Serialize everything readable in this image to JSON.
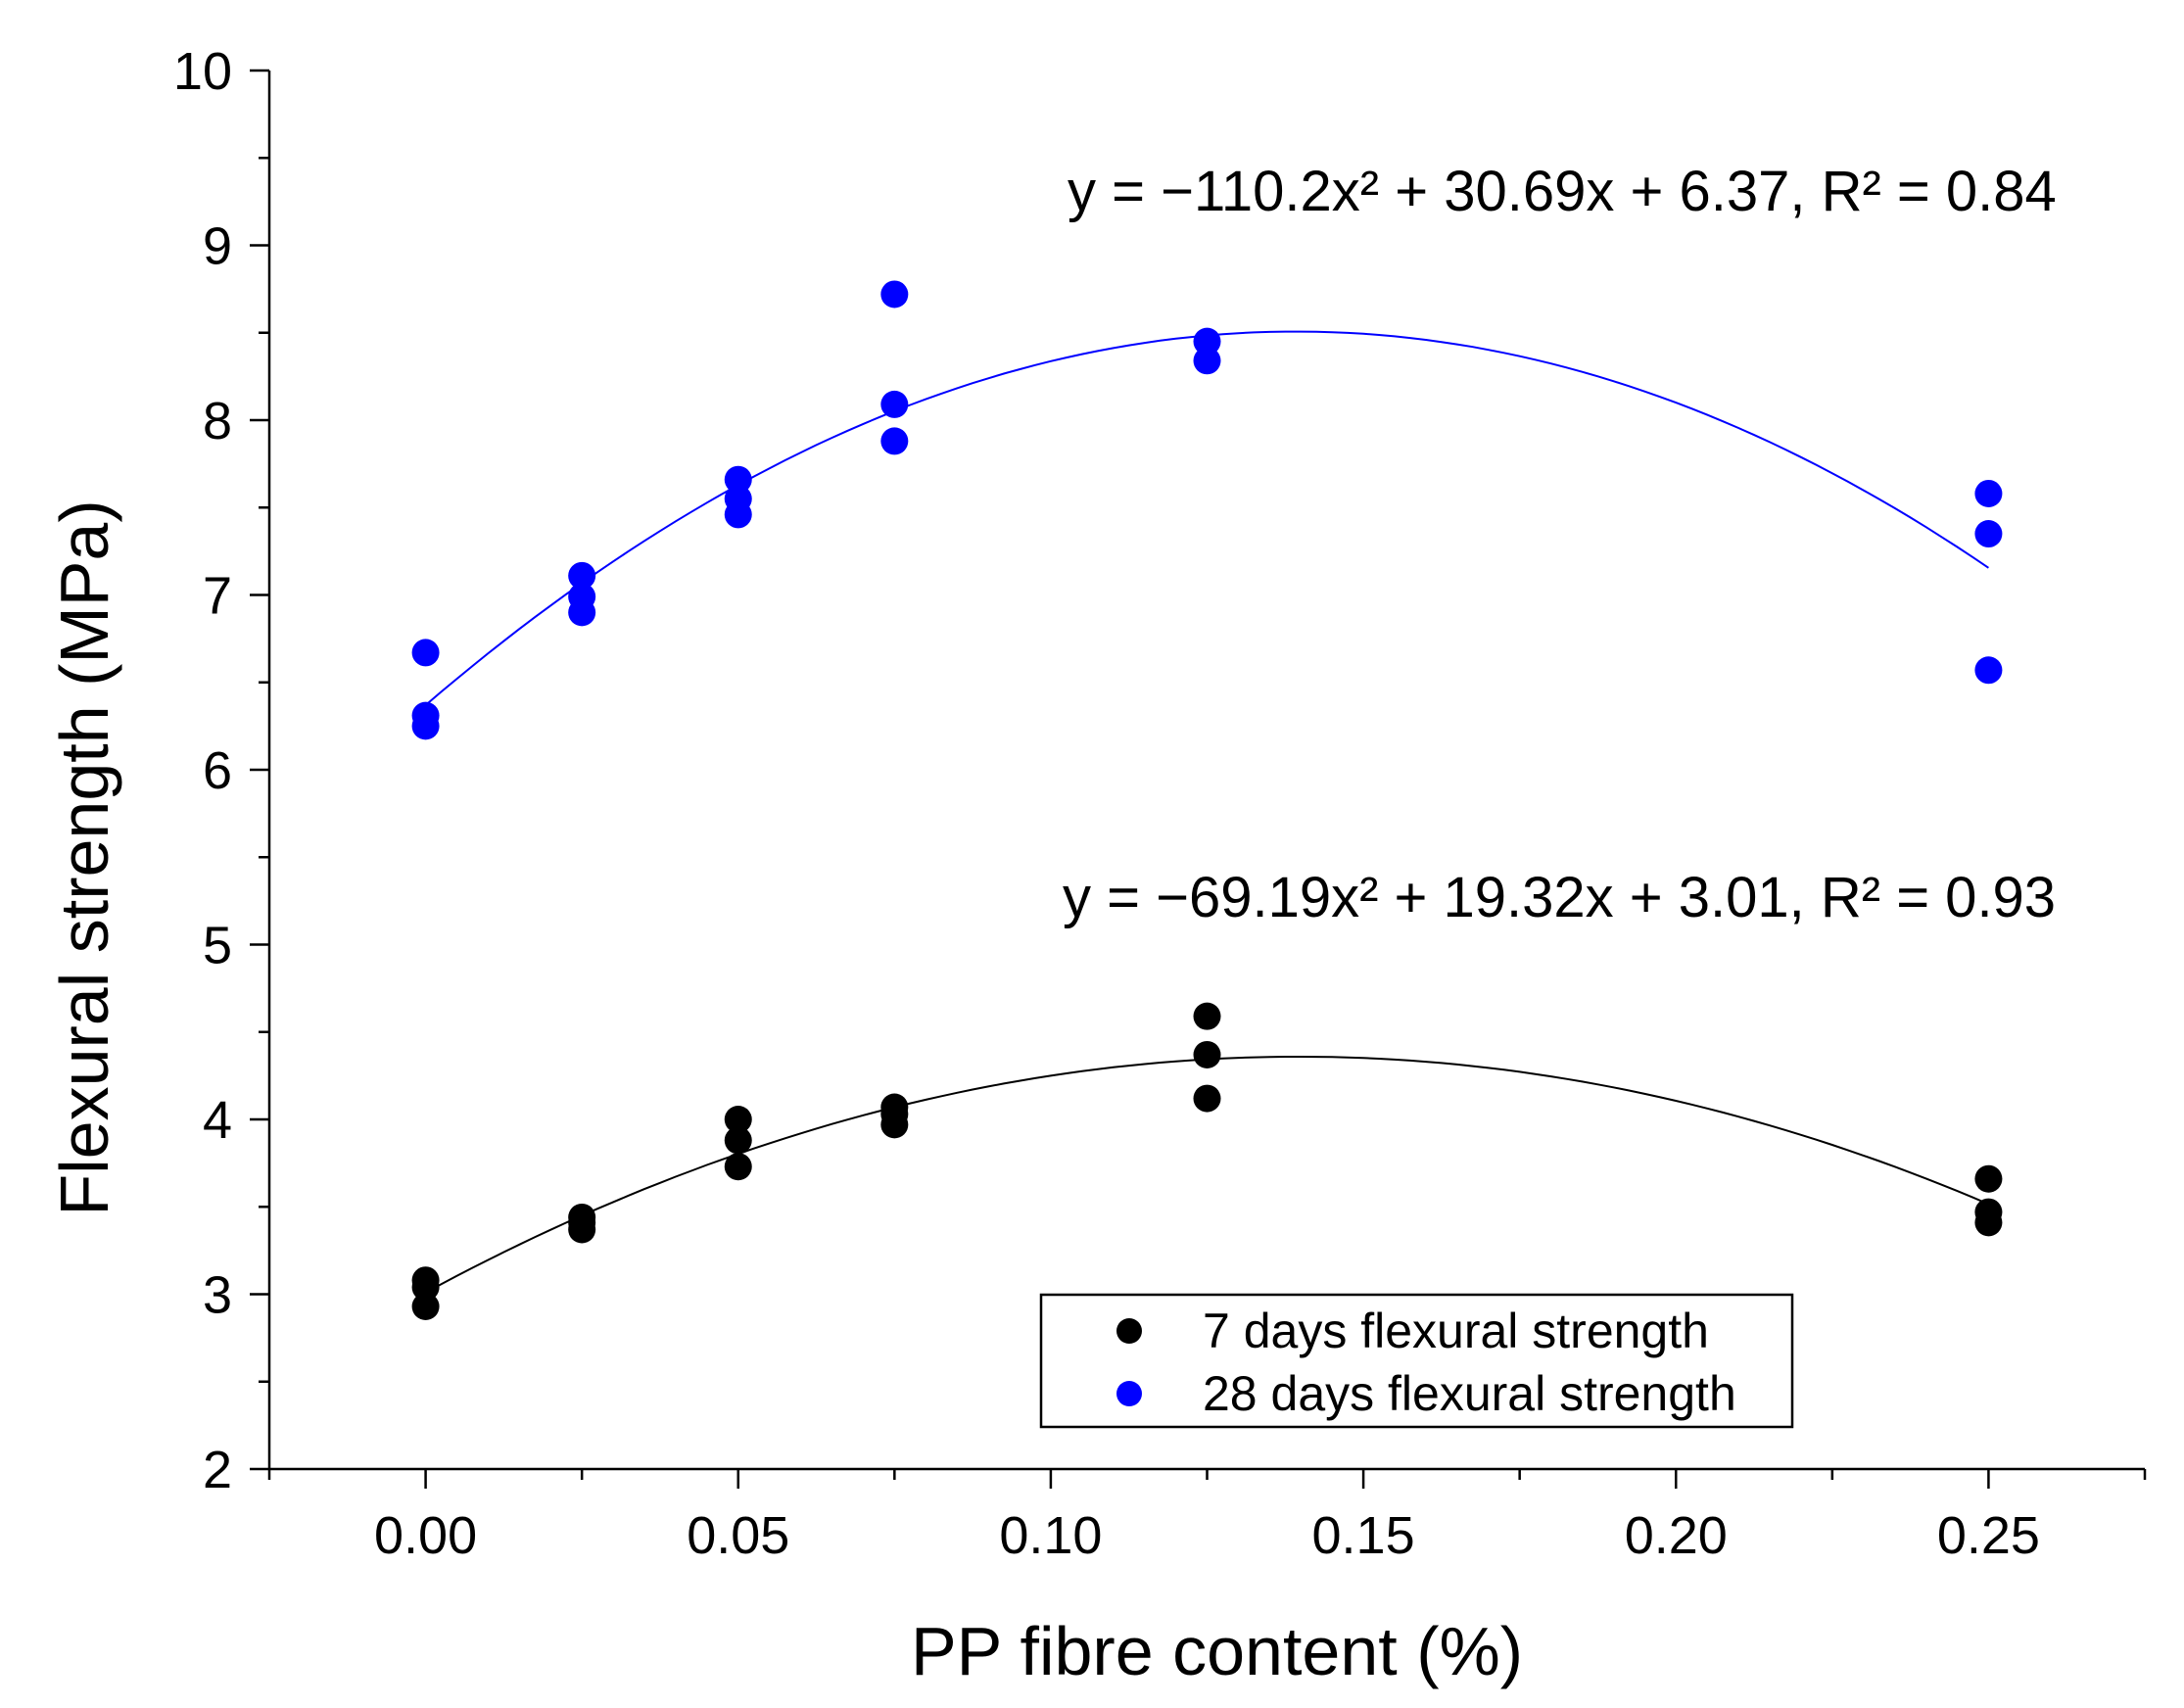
{
  "chart_data": {
    "type": "scatter",
    "xlabel": "PP fibre content (%)",
    "ylabel": "Flexural strength (MPa)",
    "xlim": [
      -0.025,
      0.275
    ],
    "ylim": [
      2,
      10
    ],
    "x_ticks": [
      0.0,
      0.05,
      0.1,
      0.15,
      0.2,
      0.25
    ],
    "x_tick_labels": [
      "0.00",
      "0.05",
      "0.10",
      "0.15",
      "0.20",
      "0.25"
    ],
    "y_ticks": [
      2,
      3,
      4,
      5,
      6,
      7,
      8,
      9,
      10
    ],
    "y_tick_labels": [
      "2",
      "3",
      "4",
      "5",
      "6",
      "7",
      "8",
      "9",
      "10"
    ],
    "grid": false,
    "legend_position": "bottom-right",
    "series": [
      {
        "name": "7 days flexural strength",
        "color": "#000000",
        "points": [
          {
            "x": 0.0,
            "y": 3.08
          },
          {
            "x": 0.0,
            "y": 3.04
          },
          {
            "x": 0.0,
            "y": 2.93
          },
          {
            "x": 0.025,
            "y": 3.44
          },
          {
            "x": 0.025,
            "y": 3.41
          },
          {
            "x": 0.025,
            "y": 3.37
          },
          {
            "x": 0.05,
            "y": 4.0
          },
          {
            "x": 0.05,
            "y": 3.88
          },
          {
            "x": 0.05,
            "y": 3.73
          },
          {
            "x": 0.075,
            "y": 4.07
          },
          {
            "x": 0.075,
            "y": 4.03
          },
          {
            "x": 0.075,
            "y": 3.97
          },
          {
            "x": 0.125,
            "y": 4.59
          },
          {
            "x": 0.125,
            "y": 4.37
          },
          {
            "x": 0.125,
            "y": 4.12
          },
          {
            "x": 0.25,
            "y": 3.66
          },
          {
            "x": 0.25,
            "y": 3.47
          },
          {
            "x": 0.25,
            "y": 3.41
          }
        ],
        "fit": {
          "a": -69.19,
          "b": 19.32,
          "c": 3.01,
          "r2": 0.93
        },
        "equation_label": "y = −69.19x² + 19.32x + 3.01, R² = 0.93"
      },
      {
        "name": "28 days flexural strength",
        "color": "#0000ff",
        "points": [
          {
            "x": 0.0,
            "y": 6.67
          },
          {
            "x": 0.0,
            "y": 6.31
          },
          {
            "x": 0.0,
            "y": 6.25
          },
          {
            "x": 0.025,
            "y": 7.11
          },
          {
            "x": 0.025,
            "y": 6.99
          },
          {
            "x": 0.025,
            "y": 6.9
          },
          {
            "x": 0.05,
            "y": 7.66
          },
          {
            "x": 0.05,
            "y": 7.55
          },
          {
            "x": 0.05,
            "y": 7.46
          },
          {
            "x": 0.075,
            "y": 8.72
          },
          {
            "x": 0.075,
            "y": 8.09
          },
          {
            "x": 0.075,
            "y": 7.88
          },
          {
            "x": 0.125,
            "y": 8.45
          },
          {
            "x": 0.125,
            "y": 8.34
          },
          {
            "x": 0.25,
            "y": 7.58
          },
          {
            "x": 0.25,
            "y": 7.35
          },
          {
            "x": 0.25,
            "y": 6.57
          }
        ],
        "fit": {
          "a": -110.2,
          "b": 30.69,
          "c": 6.37,
          "r2": 0.84
        },
        "equation_label": "y = −110.2x² + 30.69x + 6.37, R² = 0.84"
      }
    ]
  }
}
